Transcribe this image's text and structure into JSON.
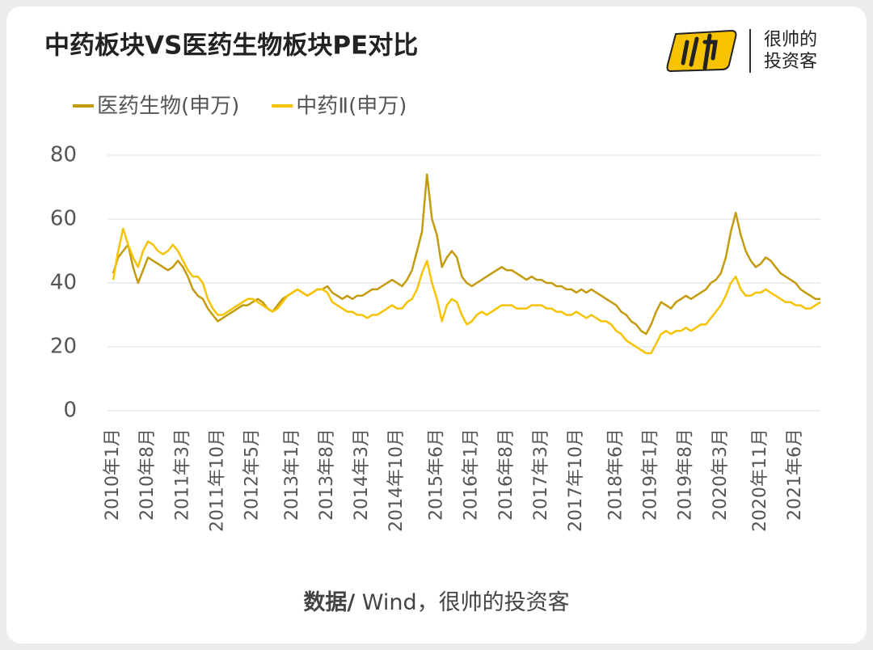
{
  "chart_data": {
    "type": "line",
    "title": "中药板块VS医药生物板块PE对比",
    "brand_line1": "很帅的",
    "brand_line2": "投资客",
    "source_label": "数据/",
    "source_text": " Wind，很帅的投资客",
    "categories": [
      "2010年1月",
      null,
      null,
      null,
      null,
      null,
      null,
      "2010年8月",
      null,
      null,
      null,
      null,
      null,
      null,
      "2011年3月",
      null,
      null,
      null,
      null,
      null,
      null,
      "2011年10月",
      null,
      null,
      null,
      null,
      null,
      null,
      "2012年5月",
      null,
      null,
      null,
      null,
      null,
      null,
      null,
      "2013年1月",
      null,
      null,
      null,
      null,
      null,
      null,
      "2013年8月",
      null,
      null,
      null,
      null,
      null,
      null,
      "2014年3月",
      null,
      null,
      null,
      null,
      null,
      null,
      "2014年10月",
      null,
      null,
      null,
      null,
      null,
      null,
      null,
      "2015年6月",
      null,
      null,
      null,
      null,
      null,
      null,
      "2016年1月",
      null,
      null,
      null,
      null,
      null,
      null,
      "2016年8月",
      null,
      null,
      null,
      null,
      null,
      null,
      "2017年3月",
      null,
      null,
      null,
      null,
      null,
      null,
      "2017年10月",
      null,
      null,
      null,
      null,
      null,
      null,
      null,
      "2018年6月",
      null,
      null,
      null,
      null,
      null,
      null,
      "2019年1月",
      null,
      null,
      null,
      null,
      null,
      null,
      "2019年8月",
      null,
      null,
      null,
      null,
      null,
      null,
      "2020年3月",
      null,
      null,
      null,
      null,
      null,
      null,
      null,
      "2020年11月",
      null,
      null,
      null,
      null,
      null,
      null,
      "2021年6月",
      null,
      null,
      null,
      null,
      null
    ],
    "series": [
      {
        "name": "医药生物(申万)",
        "color": "#c39b0c",
        "values": [
          43,
          48,
          50,
          52,
          45,
          40,
          44,
          48,
          47,
          46,
          45,
          44,
          45,
          47,
          45,
          42,
          38,
          36,
          35,
          32,
          30,
          28,
          29,
          30,
          31,
          32,
          33,
          33,
          34,
          35,
          34,
          32,
          31,
          33,
          35,
          36,
          37,
          38,
          37,
          36,
          37,
          38,
          38,
          39,
          37,
          36,
          35,
          36,
          35,
          36,
          36,
          37,
          38,
          38,
          39,
          40,
          41,
          40,
          39,
          41,
          44,
          50,
          56,
          74,
          60,
          55,
          45,
          48,
          50,
          48,
          42,
          40,
          39,
          40,
          41,
          42,
          43,
          44,
          45,
          44,
          44,
          43,
          42,
          41,
          42,
          41,
          41,
          40,
          40,
          39,
          39,
          38,
          38,
          37,
          38,
          37,
          38,
          37,
          36,
          35,
          34,
          33,
          31,
          30,
          28,
          27,
          25,
          24,
          27,
          31,
          34,
          33,
          32,
          34,
          35,
          36,
          35,
          36,
          37,
          38,
          40,
          41,
          43,
          48,
          56,
          62,
          55,
          50,
          47,
          45,
          46,
          48,
          47,
          45,
          43,
          42,
          41,
          40,
          38,
          37,
          36,
          35,
          35
        ]
      },
      {
        "name": "中药Ⅱ(申万)",
        "color": "#f7c300",
        "values": [
          41,
          50,
          57,
          52,
          48,
          45,
          50,
          53,
          52,
          50,
          49,
          50,
          52,
          50,
          47,
          44,
          42,
          42,
          40,
          35,
          32,
          30,
          30,
          31,
          32,
          33,
          34,
          35,
          35,
          34,
          33,
          32,
          31,
          32,
          34,
          36,
          37,
          38,
          37,
          36,
          37,
          38,
          38,
          37,
          34,
          33,
          32,
          31,
          31,
          30,
          30,
          29,
          30,
          30,
          31,
          32,
          33,
          32,
          32,
          34,
          35,
          38,
          43,
          47,
          40,
          35,
          28,
          33,
          35,
          34,
          30,
          27,
          28,
          30,
          31,
          30,
          31,
          32,
          33,
          33,
          33,
          32,
          32,
          32,
          33,
          33,
          33,
          32,
          32,
          31,
          31,
          30,
          30,
          31,
          30,
          29,
          30,
          29,
          28,
          28,
          27,
          25,
          24,
          22,
          21,
          20,
          19,
          18,
          18,
          21,
          24,
          25,
          24,
          25,
          25,
          26,
          25,
          26,
          27,
          27,
          29,
          31,
          33,
          36,
          40,
          42,
          38,
          36,
          36,
          37,
          37,
          38,
          37,
          36,
          35,
          34,
          34,
          33,
          33,
          32,
          32,
          33,
          34
        ]
      }
    ],
    "ylim": [
      0,
      80
    ],
    "yticks": [
      0,
      20,
      40,
      60,
      80
    ],
    "grid": true,
    "legend": "top-left"
  }
}
